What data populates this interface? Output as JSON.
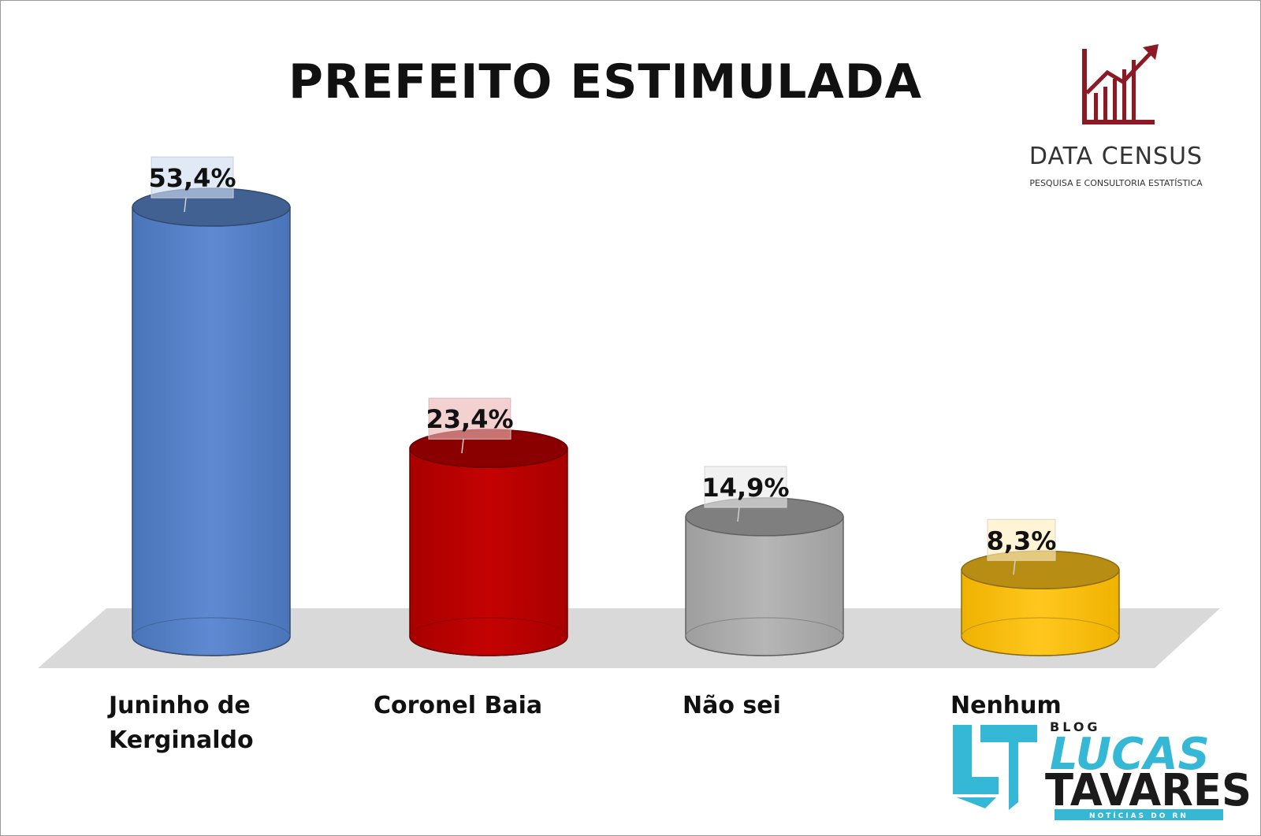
{
  "chart_data": {
    "type": "bar",
    "title": "PREFEITO ESTIMULADA",
    "categories": [
      "Juninho de Kerginaldo",
      "Coronel Baia",
      "Não sei",
      "Nenhum"
    ],
    "category_lines": [
      [
        "Juninho de",
        "Kerginaldo"
      ],
      [
        "Coronel Baia"
      ],
      [
        "Não sei"
      ],
      [
        "Nenhum"
      ]
    ],
    "values": [
      53.4,
      23.4,
      14.9,
      8.3
    ],
    "value_labels": [
      "53,4%",
      "23,4%",
      "14,9%",
      "8,3%"
    ],
    "colors": [
      "#5b87cc",
      "#c00000",
      "#b0b0b0",
      "#ffc41a"
    ],
    "ylim": [
      0,
      53.4
    ],
    "xlabel": "",
    "ylabel": "",
    "grid": false,
    "legend": "none"
  },
  "brand": {
    "name": "DATA CENSUS",
    "tagline": "PESQUISA E CONSULTORIA ESTATÍSTICA",
    "icon": "bar-chart-rising-arrow-icon",
    "color": "#8b1a24"
  },
  "blog": {
    "small": "BLOG",
    "line1": "LUCAS",
    "line2": "TAVARES",
    "news": "NOTÍCIAS DO RN",
    "accent": "#35b8d6"
  }
}
